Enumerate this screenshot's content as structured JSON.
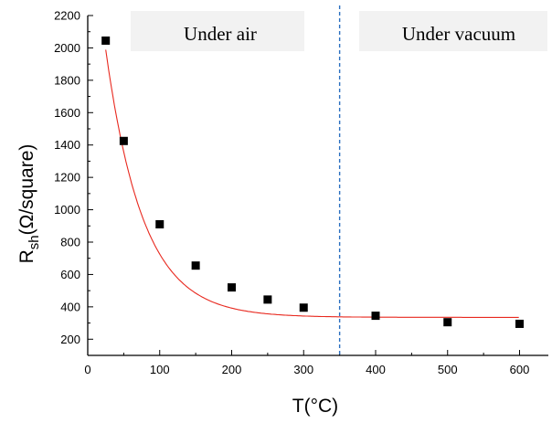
{
  "chart_data": {
    "type": "scatter",
    "title": "",
    "xlabel": "T(°C)",
    "ylabel_main": "R",
    "ylabel_sub": "sh",
    "ylabel_rest": "(Ω/square)",
    "xlim": [
      0,
      640
    ],
    "ylim": [
      100,
      2200
    ],
    "x_ticks": [
      0,
      100,
      200,
      300,
      400,
      500,
      600
    ],
    "y_ticks": [
      200,
      400,
      600,
      800,
      1000,
      1200,
      1400,
      1600,
      1800,
      2000,
      2200
    ],
    "grid": false,
    "series": [
      {
        "marker": "square",
        "color": "#000000",
        "x": [
          25,
          50,
          100,
          150,
          200,
          250,
          300,
          400,
          500,
          600
        ],
        "y": [
          2045,
          1425,
          910,
          655,
          520,
          445,
          395,
          345,
          305,
          295
        ]
      }
    ],
    "fit": {
      "type": "exponential-decay",
      "color": "#e8281e",
      "x_range": [
        25,
        600
      ],
      "y0": 335,
      "A": 2675,
      "t": 52
    },
    "divider": {
      "x": 350,
      "style": "dashed",
      "color": "#2a6fc0"
    },
    "regions": [
      {
        "label": "Under air"
      },
      {
        "label": "Under vacuum"
      }
    ]
  }
}
